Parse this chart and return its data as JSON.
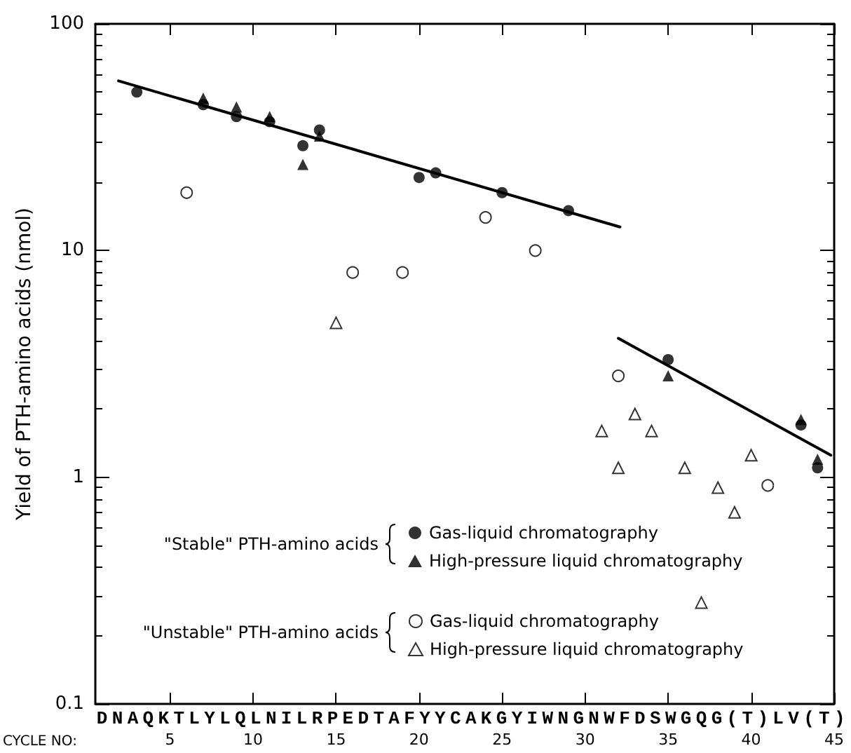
{
  "chart_data": {
    "type": "scatter",
    "ylabel": "Yield of PTH-amino acids (nmol)",
    "xlabel": "CYCLE NO:",
    "annotations": [
      "DNAQKTLYLQLNILRPEDTAFYYCAKGYIWNGNWFDSWGQG(T)LV(T)",
      "\"Stable\" PTH-amino acids",
      "\"Unstable\" PTH-amino acids"
    ],
    "log": "y",
    "xlim": [
      0.5,
      45
    ],
    "xticks": [
      5,
      10,
      15,
      20,
      25,
      30,
      35,
      40,
      45
    ],
    "ylim": [
      0.1,
      100
    ],
    "yticks": [
      0.1,
      1,
      10,
      100
    ],
    "grid": false,
    "legend": "bottom",
    "series": [
      {
        "name": "Gas-liquid chromatography",
        "color": "#000000",
        "marker": "circle",
        "x": [
          3,
          7,
          9,
          11,
          13,
          14,
          20,
          21,
          25,
          29,
          35,
          43,
          44
        ],
        "values": [
          50,
          44,
          39,
          37,
          29,
          34,
          21,
          22,
          18,
          15,
          3.3,
          1.7,
          1.1
        ]
      },
      {
        "name": "High-pressure liquid chromatography",
        "color": "#000000",
        "marker": "triangle",
        "x": [
          7,
          9,
          11,
          13,
          14,
          35,
          43,
          44
        ],
        "values": [
          47,
          43,
          39,
          24,
          32,
          2.8,
          1.8,
          1.2
        ]
      },
      {
        "name": "Gas-liquid chromatography",
        "color": "#000000",
        "marker": "circle",
        "x": [
          6,
          16,
          19,
          24,
          27,
          32,
          41
        ],
        "values": [
          18,
          8,
          8,
          14,
          10,
          2.8,
          0.92
        ]
      },
      {
        "name": "High-pressure liquid chromatography",
        "color": "#000000",
        "marker": "triangle",
        "x": [
          15,
          31,
          32,
          33,
          34,
          36,
          37,
          38,
          39,
          40
        ],
        "values": [
          4.8,
          1.6,
          1.1,
          1.9,
          1.6,
          1.1,
          0.28,
          0.9,
          0.7,
          1.25
        ]
      },
      {
        "type": "line",
        "color": "#000000",
        "marker": "none",
        "line_style": "solid",
        "x": [
          1.9,
          32.1
        ],
        "values": [
          56,
          12.7
        ]
      },
      {
        "type": "line",
        "color": "#000000",
        "marker": "none",
        "line_style": "solid",
        "x": [
          32,
          44.8
        ],
        "values": [
          4.1,
          1.25
        ]
      }
    ]
  }
}
